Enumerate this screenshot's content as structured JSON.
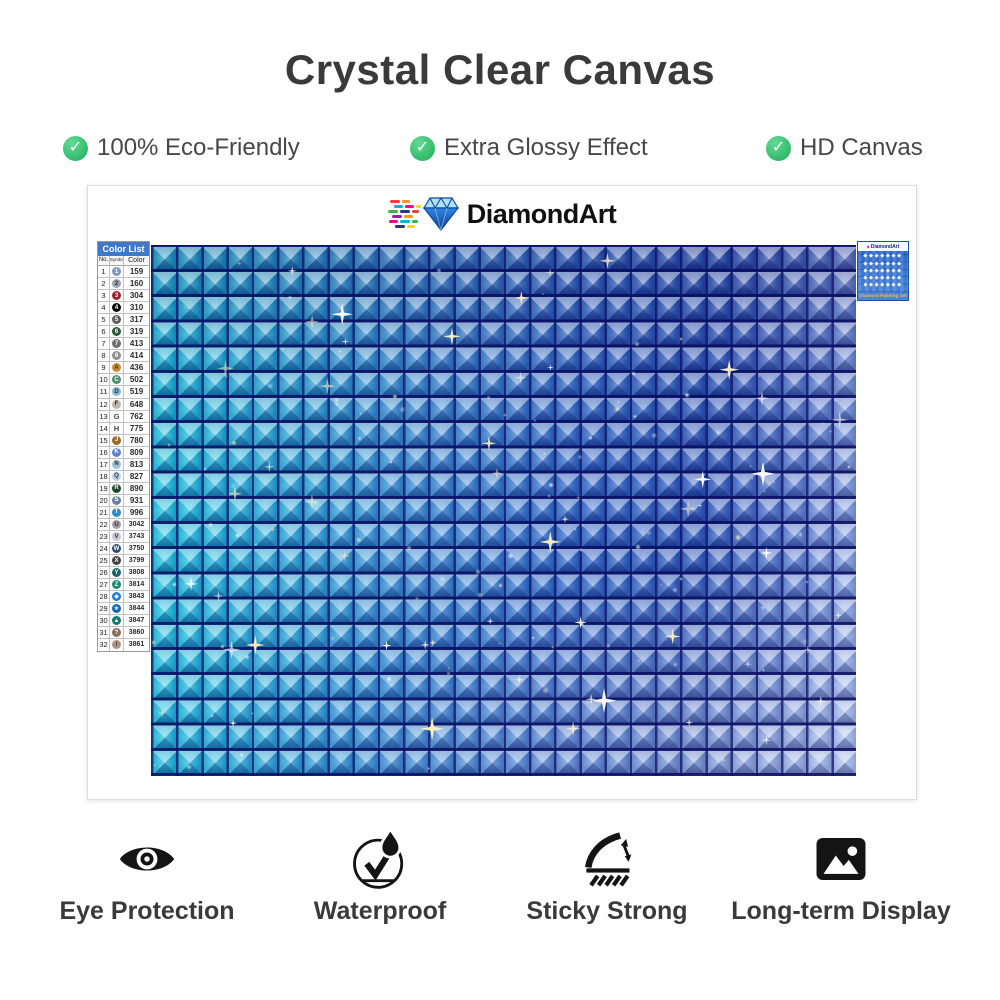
{
  "title": "Crystal Clear Canvas",
  "features": [
    {
      "icon": "check-circle-icon",
      "label": "100% Eco-Friendly"
    },
    {
      "icon": "check-circle-icon",
      "label": "Extra Glossy Effect"
    },
    {
      "icon": "check-circle-icon",
      "label": "HD Canvas"
    }
  ],
  "brand": {
    "name": "DiamondArt"
  },
  "sheet": {
    "color_list": {
      "title": "Color List",
      "columns": [
        "No.",
        "Symbol",
        "Color"
      ],
      "rows": [
        {
          "no": "1",
          "symbol": "1",
          "code": "159",
          "symbol_color": "#8094c4"
        },
        {
          "no": "2",
          "symbol": "2",
          "code": "160",
          "symbol_color": "#9aa0b0"
        },
        {
          "no": "3",
          "symbol": "3",
          "code": "304",
          "symbol_color": "#a51f2d"
        },
        {
          "no": "4",
          "symbol": "4",
          "code": "310",
          "symbol_color": "#0a0a0a"
        },
        {
          "no": "5",
          "symbol": "5",
          "code": "317",
          "symbol_color": "#5d5d5d"
        },
        {
          "no": "6",
          "symbol": "6",
          "code": "319",
          "symbol_color": "#2d5a3c"
        },
        {
          "no": "7",
          "symbol": "7",
          "code": "413",
          "symbol_color": "#6e6e70"
        },
        {
          "no": "8",
          "symbol": "8",
          "code": "414",
          "symbol_color": "#8e8e90"
        },
        {
          "no": "9",
          "symbol": "A",
          "code": "436",
          "symbol_color": "#cd8f36"
        },
        {
          "no": "10",
          "symbol": "C",
          "code": "502",
          "symbol_color": "#4f8f6f"
        },
        {
          "no": "11",
          "symbol": "D",
          "code": "519",
          "symbol_color": "#84b8da"
        },
        {
          "no": "12",
          "symbol": "F",
          "code": "648",
          "symbol_color": "#bdb5a9"
        },
        {
          "no": "13",
          "symbol": "G",
          "code": "762",
          "symbol_color": null
        },
        {
          "no": "14",
          "symbol": "H",
          "code": "775",
          "symbol_color": null
        },
        {
          "no": "15",
          "symbol": "J",
          "code": "780",
          "symbol_color": "#9b6a24"
        },
        {
          "no": "16",
          "symbol": "K",
          "code": "809",
          "symbol_color": "#5f82ca"
        },
        {
          "no": "17",
          "symbol": "N",
          "code": "813",
          "symbol_color": "#9cc2de"
        },
        {
          "no": "18",
          "symbol": "Q",
          "code": "827",
          "symbol_color": "#b5d3e8"
        },
        {
          "no": "19",
          "symbol": "R",
          "code": "890",
          "symbol_color": "#1d4a2c"
        },
        {
          "no": "20",
          "symbol": "S",
          "code": "931",
          "symbol_color": "#68809c"
        },
        {
          "no": "21",
          "symbol": "T",
          "code": "996",
          "symbol_color": "#2f8ad2"
        },
        {
          "no": "22",
          "symbol": "U",
          "code": "3042",
          "symbol_color": "#a79aa9"
        },
        {
          "no": "23",
          "symbol": "V",
          "code": "3743",
          "symbol_color": "#cdc4d4"
        },
        {
          "no": "24",
          "symbol": "W",
          "code": "3750",
          "symbol_color": "#2c4a6e"
        },
        {
          "no": "25",
          "symbol": "X",
          "code": "3799",
          "symbol_color": "#424245"
        },
        {
          "no": "26",
          "symbol": "Y",
          "code": "3808",
          "symbol_color": "#14656e"
        },
        {
          "no": "27",
          "symbol": "Z",
          "code": "3814",
          "symbol_color": "#178a72"
        },
        {
          "no": "28",
          "symbol": "◆",
          "code": "3843",
          "symbol_color": "#1e7ed2"
        },
        {
          "no": "29",
          "symbol": "★",
          "code": "3844",
          "symbol_color": "#1569b8"
        },
        {
          "no": "30",
          "symbol": "▲",
          "code": "3847",
          "symbol_color": "#117a6c"
        },
        {
          "no": "31",
          "symbol": "?",
          "code": "3860",
          "symbol_color": "#8a6c60"
        },
        {
          "no": "32",
          "symbol": "/",
          "code": "3861",
          "symbol_color": "#ad9384"
        }
      ]
    },
    "package_label": {
      "brand": "DiamondArt",
      "caption": "Diamond Painting Set"
    }
  },
  "benefits": [
    {
      "icon": "eye-icon",
      "label": "Eye Protection"
    },
    {
      "icon": "waterproof-icon",
      "label": "Waterproof"
    },
    {
      "icon": "sticky-icon",
      "label": "Sticky Strong"
    },
    {
      "icon": "picture-icon",
      "label": "Long-term Display"
    }
  ],
  "colors": {
    "accent_green": "#3ec573",
    "heading_text": "#3a3a3a",
    "list_header_bg": "#3f78c9",
    "package_bg": "#2e6bcc",
    "canvas_gradient": [
      "#17c6de",
      "#27abd8",
      "#3a88d2",
      "#3166c6",
      "#2c55b8",
      "#97b0ea"
    ]
  }
}
